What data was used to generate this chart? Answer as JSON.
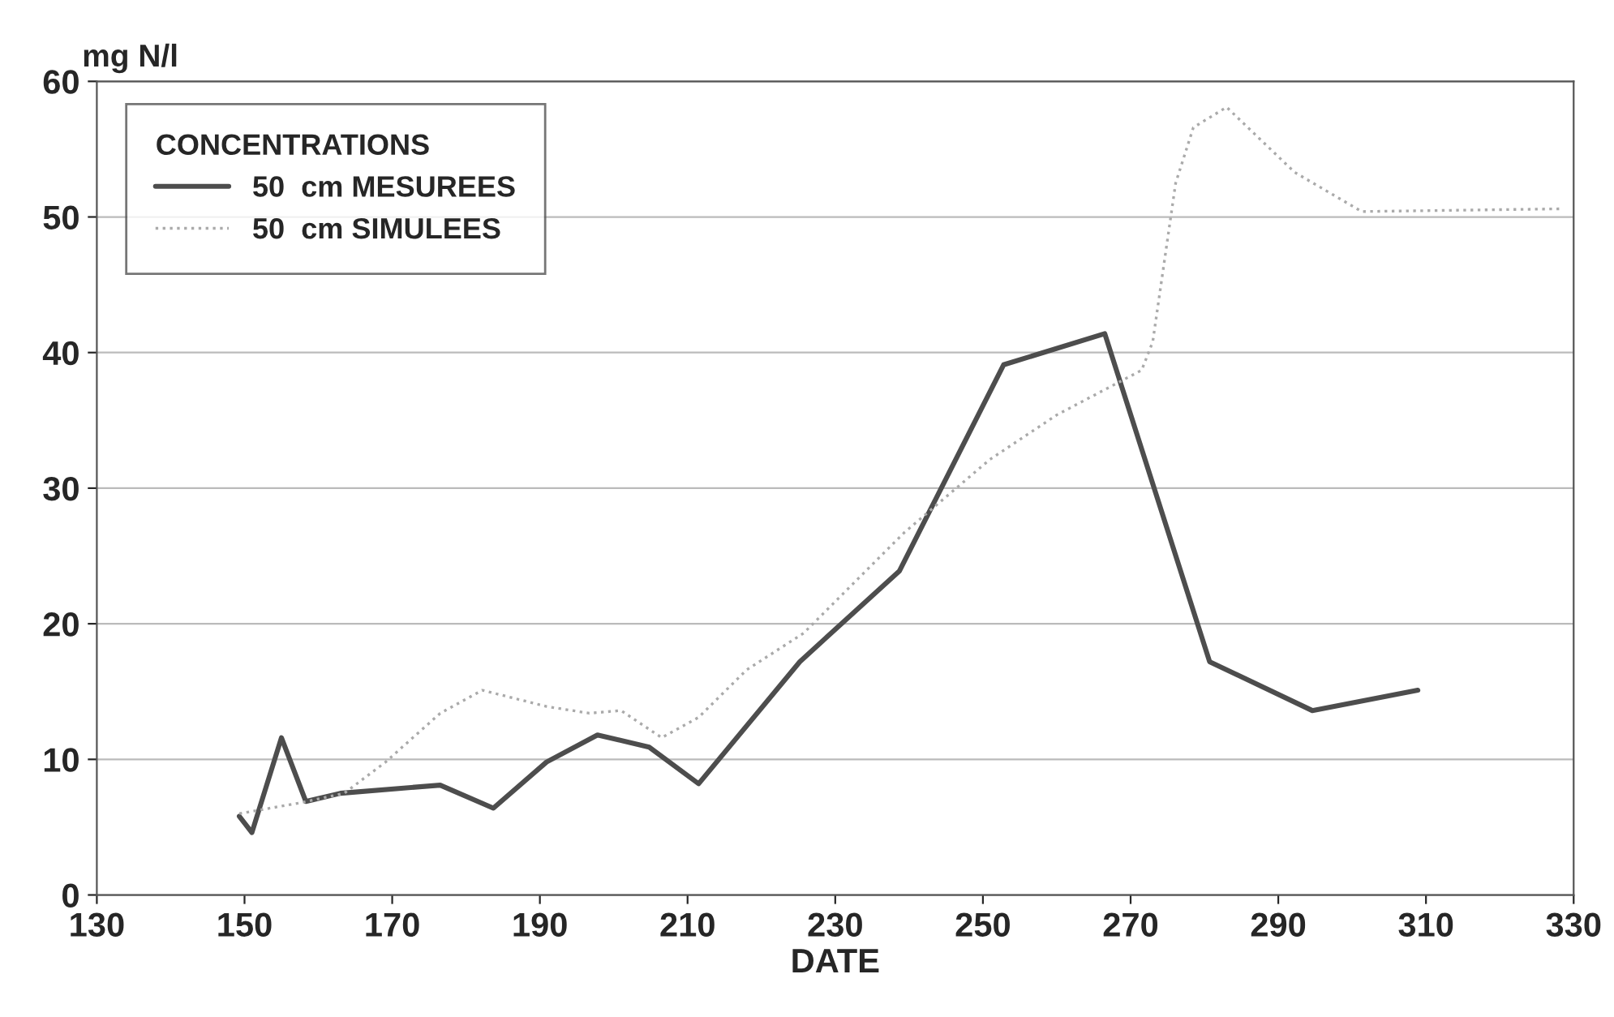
{
  "chart_data": {
    "type": "line",
    "ylabel": "mg N/l",
    "xlabel": "DATE",
    "legend_title": "CONCENTRATIONS",
    "xlim": [
      130,
      330
    ],
    "xticks": [
      130,
      150,
      170,
      190,
      210,
      230,
      250,
      270,
      290,
      310,
      330
    ],
    "ylim": [
      0,
      60
    ],
    "yticks": [
      0,
      10,
      20,
      30,
      40,
      50,
      60
    ],
    "grid": "y",
    "legend": "top left",
    "series": [
      {
        "name": "50  cm MESUREES",
        "color": "#4d4d4d",
        "line_style": "solid",
        "x": [
          149.3,
          151,
          155,
          158.3,
          163,
          176.5,
          183.7,
          190.9,
          197.8,
          204.8,
          211.5,
          225.2,
          238.7,
          252.8,
          266.5,
          280.7,
          294.6,
          308.9
        ],
        "values": [
          5.8,
          4.6,
          11.6,
          6.9,
          7.5,
          8.1,
          6.4,
          9.8,
          11.8,
          10.9,
          8.2,
          17.2,
          23.9,
          39.1,
          41.4,
          17.2,
          13.6,
          15.1
        ]
      },
      {
        "name": "50  cm SIMULEES",
        "color": "#aaaaaa",
        "line_style": "dotted",
        "x": [
          149.3,
          157.6,
          163.5,
          169.1,
          176.5,
          182.2,
          190.9,
          196.7,
          201,
          206.5,
          211.5,
          218,
          225.7,
          239.3,
          250.9,
          260,
          271.5,
          273,
          276.1,
          278.5,
          283,
          292.2,
          301.3,
          328.3
        ],
        "values": [
          6.0,
          6.8,
          7.5,
          9.8,
          13.4,
          15.1,
          13.9,
          13.4,
          13.6,
          11.6,
          13.1,
          16.6,
          19.3,
          26.7,
          32.1,
          35.4,
          38.7,
          40.8,
          52.5,
          56.6,
          58.1,
          53.3,
          50.4,
          50.6
        ]
      }
    ]
  }
}
